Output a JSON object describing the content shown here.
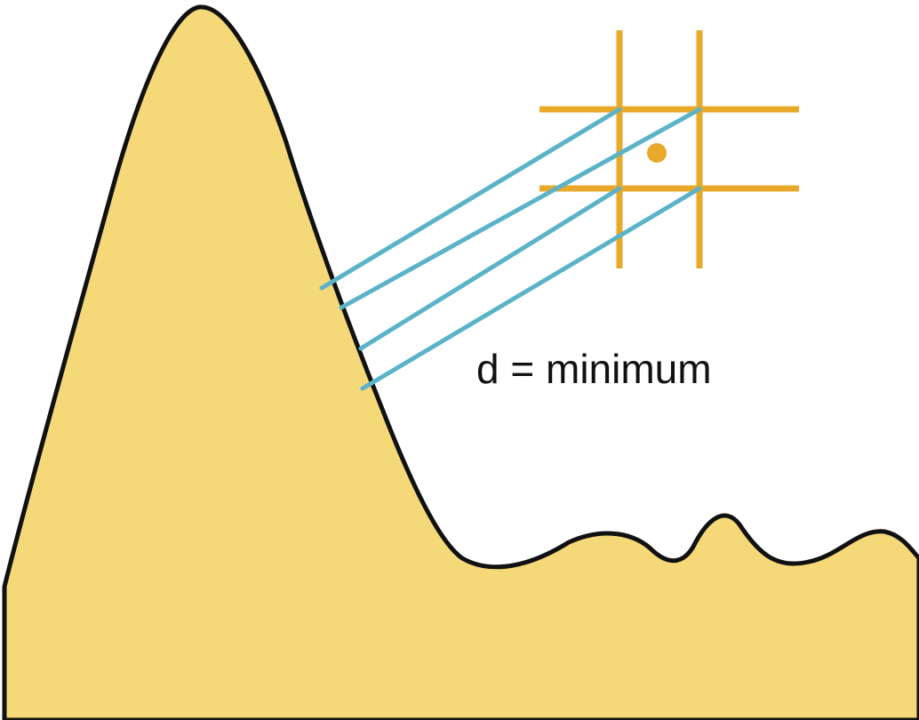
{
  "colors": {
    "terrain_fill": "#f5d878",
    "terrain_outline": "#111111",
    "grid": "#e8a82a",
    "rays": "#5bb3c8",
    "background": "#ffffff"
  },
  "annotation": {
    "text": "d = minimum"
  }
}
